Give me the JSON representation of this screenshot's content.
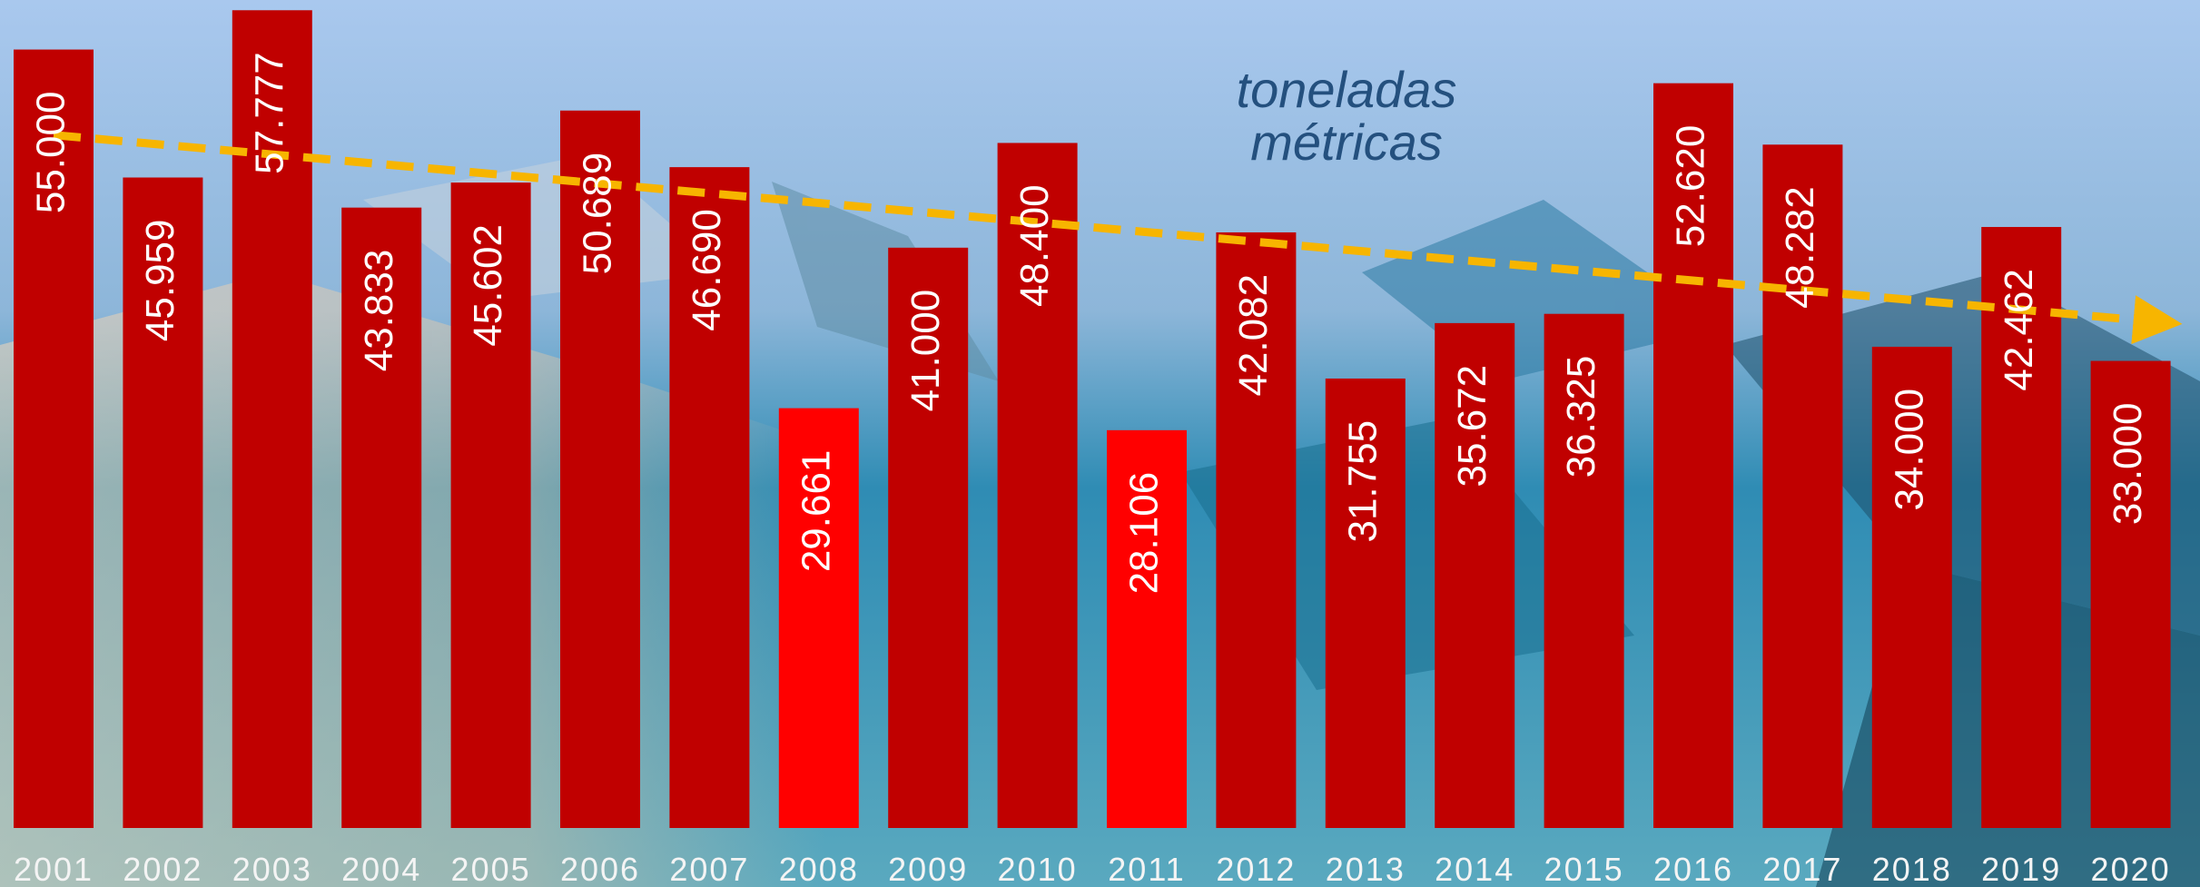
{
  "chart_data": {
    "type": "bar",
    "annotation": [
      "toneladas",
      "métricas"
    ],
    "categories": [
      "2001",
      "2002",
      "2003",
      "2004",
      "2005",
      "2006",
      "2007",
      "2008",
      "2009",
      "2010",
      "2011",
      "2012",
      "2013",
      "2014",
      "2015",
      "2016",
      "2017",
      "2018",
      "2019",
      "2020"
    ],
    "values": [
      55000,
      45959,
      57777,
      43833,
      45602,
      50689,
      46690,
      29661,
      41000,
      48400,
      28106,
      42082,
      31755,
      35672,
      36325,
      52620,
      48282,
      34000,
      42462,
      33000
    ],
    "value_labels": [
      "55.000",
      "45.959",
      "57.777",
      "43.833",
      "45.602",
      "50.689",
      "46.690",
      "29.661",
      "41.000",
      "48.400",
      "28.106",
      "42.082",
      "31.755",
      "35.672",
      "36.325",
      "52.620",
      "48.282",
      "34.000",
      "42.462",
      "33.000"
    ],
    "colors": [
      "#c00000",
      "#c00000",
      "#c00000",
      "#c00000",
      "#c00000",
      "#c00000",
      "#c00000",
      "#ff0000",
      "#c00000",
      "#c00000",
      "#ff0000",
      "#c00000",
      "#c00000",
      "#c00000",
      "#c00000",
      "#c00000",
      "#c00000",
      "#c00000",
      "#c00000",
      "#c00000"
    ],
    "trend_color": "#f7b500",
    "ylim": [
      0,
      58500
    ]
  }
}
